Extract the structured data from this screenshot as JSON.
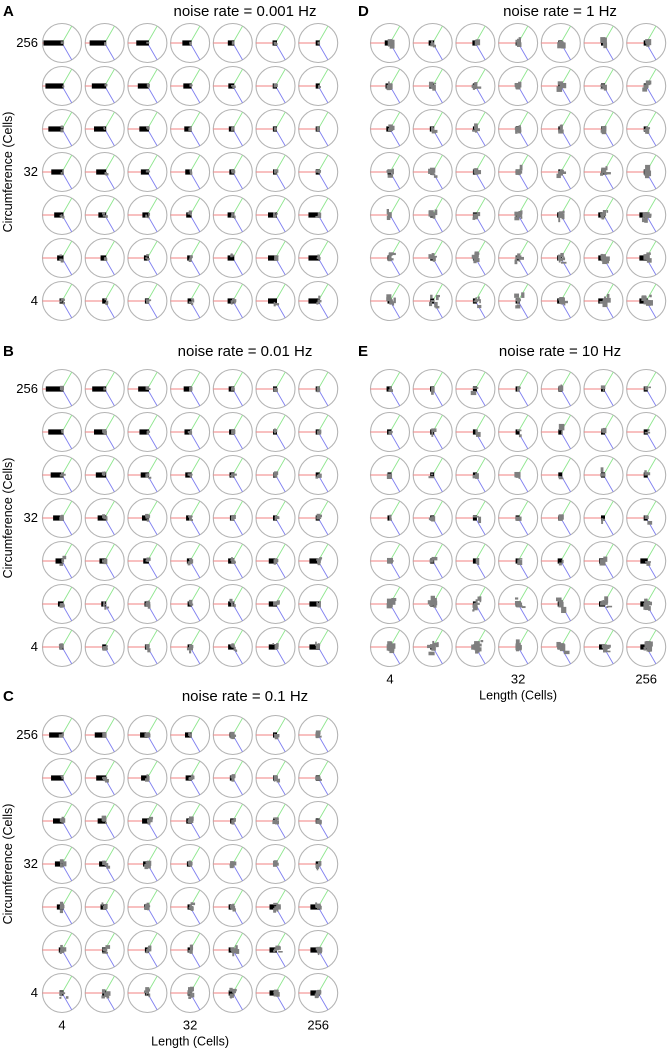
{
  "colors": {
    "ring": "#b4b4b4",
    "axis_red": "#f08080",
    "axis_green": "#8ee68e",
    "axis_blue": "#8080f0",
    "black_bar": "#000000",
    "gray_blob": "#7f7f7f"
  },
  "chart_data": [
    {
      "type": "polar-histogram-grid",
      "panel": "A",
      "title": "noise rate = 0.001 Hz",
      "ylabel": "Circumference (Cells)",
      "y_ticks": [
        "256",
        "32",
        "4"
      ],
      "x_ticks": [],
      "xlabel": "",
      "rows": 7,
      "cols": 7
    },
    {
      "type": "polar-histogram-grid",
      "panel": "B",
      "title": "noise rate = 0.01 Hz",
      "ylabel": "Circumference (Cells)",
      "y_ticks": [
        "256",
        "32",
        "4"
      ],
      "x_ticks": [],
      "xlabel": "",
      "rows": 7,
      "cols": 7
    },
    {
      "type": "polar-histogram-grid",
      "panel": "C",
      "title": "noise rate = 0.1 Hz",
      "ylabel": "Circumference (Cells)",
      "y_ticks": [
        "256",
        "32",
        "4"
      ],
      "x_ticks": [
        "4",
        "32",
        "256"
      ],
      "xlabel": "Length (Cells)",
      "rows": 7,
      "cols": 7
    },
    {
      "type": "polar-histogram-grid",
      "panel": "D",
      "title": "noise rate = 1 Hz",
      "ylabel": "",
      "y_ticks": [],
      "x_ticks": [],
      "xlabel": "",
      "rows": 7,
      "cols": 7
    },
    {
      "type": "polar-histogram-grid",
      "panel": "E",
      "title": "noise rate = 10 Hz",
      "ylabel": "",
      "y_ticks": [],
      "x_ticks": [
        "4",
        "32",
        "256"
      ],
      "xlabel": "Length (Cells)",
      "rows": 7,
      "cols": 7
    }
  ]
}
